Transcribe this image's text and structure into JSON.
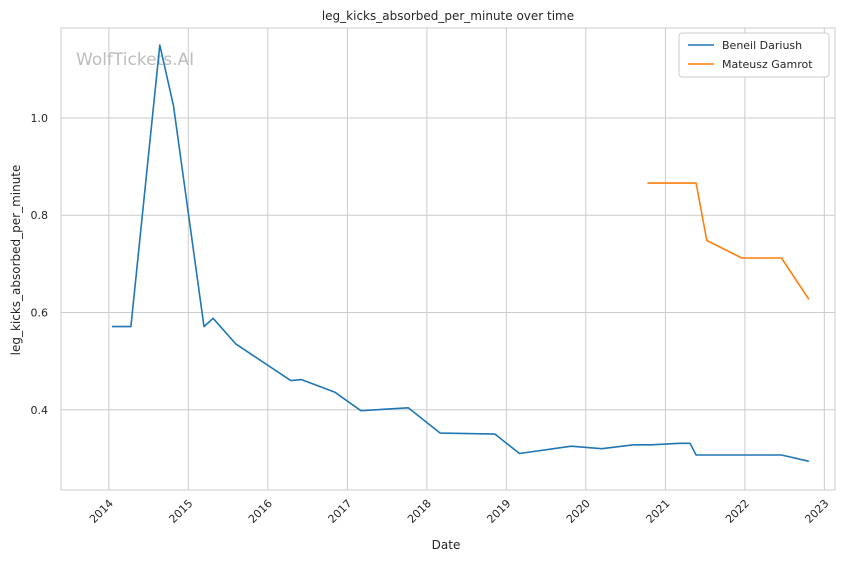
{
  "chart_data": {
    "type": "line",
    "title": "leg_kicks_absorbed_per_minute over time",
    "xlabel": "Date",
    "ylabel": "leg_kicks_absorbed_per_minute",
    "watermark": "WolfTickets.AI",
    "x_ticks": [
      "2014",
      "2015",
      "2016",
      "2017",
      "2018",
      "2019",
      "2020",
      "2021",
      "2022",
      "2023"
    ],
    "y_ticks": [
      "0.4",
      "0.6",
      "0.8",
      "1.0"
    ],
    "xlim": [
      "2013-05-26",
      "2023-02-19"
    ],
    "ylim": [
      0.235,
      1.185
    ],
    "grid": true,
    "legend_position": "top-right",
    "series": [
      {
        "name": "Beneil Dariush",
        "color": "#1f77b4",
        "points": [
          [
            "2014-01-15",
            0.571
          ],
          [
            "2014-04-12",
            0.571
          ],
          [
            "2014-08-23",
            1.15
          ],
          [
            "2014-10-25",
            1.025
          ],
          [
            "2015-03-14",
            0.571
          ],
          [
            "2015-04-25",
            0.588
          ],
          [
            "2015-08-08",
            0.535
          ],
          [
            "2016-04-16",
            0.46
          ],
          [
            "2016-06-04",
            0.462
          ],
          [
            "2016-11-05",
            0.436
          ],
          [
            "2017-03-04",
            0.398
          ],
          [
            "2017-10-07",
            0.404
          ],
          [
            "2018-03-03",
            0.352
          ],
          [
            "2018-11-10",
            0.35
          ],
          [
            "2019-03-02",
            0.31
          ],
          [
            "2019-10-26",
            0.325
          ],
          [
            "2020-03-14",
            0.32
          ],
          [
            "2020-08-08",
            0.328
          ],
          [
            "2020-10-31",
            0.328
          ],
          [
            "2021-03-06",
            0.331
          ],
          [
            "2021-04-24",
            0.331
          ],
          [
            "2021-05-22",
            0.307
          ],
          [
            "2022-01-15",
            0.307
          ],
          [
            "2022-06-18",
            0.307
          ],
          [
            "2022-10-22",
            0.294
          ]
        ]
      },
      {
        "name": "Mateusz Gamrot",
        "color": "#ff7f0e",
        "points": [
          [
            "2020-10-10",
            0.866
          ],
          [
            "2021-05-22",
            0.866
          ],
          [
            "2021-07-10",
            0.748
          ],
          [
            "2021-12-18",
            0.712
          ],
          [
            "2022-06-18",
            0.712
          ],
          [
            "2022-10-22",
            0.627
          ]
        ]
      }
    ]
  }
}
